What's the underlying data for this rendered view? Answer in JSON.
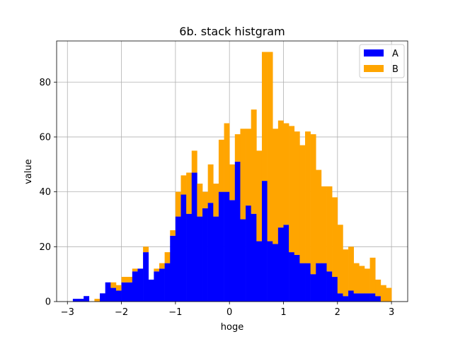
{
  "chart_data": {
    "type": "bar",
    "stacked": true,
    "title": "6b. stack histgram",
    "xlabel": "hoge",
    "ylabel": "value",
    "xlim": [
      -3.2,
      3.3
    ],
    "ylim": [
      0,
      95
    ],
    "xticks": [
      -3,
      -2,
      -1,
      0,
      1,
      2,
      3
    ],
    "xtick_labels": [
      "−3",
      "−2",
      "−1",
      "0",
      "1",
      "2",
      "3"
    ],
    "yticks": [
      0,
      20,
      40,
      60,
      80
    ],
    "ytick_labels": [
      "0",
      "20",
      "40",
      "60",
      "80"
    ],
    "grid": true,
    "legend_position": "top-right",
    "bin_start": -3.0,
    "bin_width": 0.1,
    "series": [
      {
        "name": "A",
        "color": "#0000ff",
        "values": [
          0,
          1,
          1,
          2,
          0,
          0,
          3,
          7,
          5,
          4,
          7,
          7,
          11,
          12,
          18,
          8,
          11,
          12,
          14,
          24,
          31,
          39,
          32,
          47,
          31,
          34,
          36,
          31,
          40,
          40,
          37,
          51,
          30,
          35,
          32,
          22,
          44,
          22,
          21,
          27,
          28,
          18,
          17,
          14,
          14,
          10,
          14,
          14,
          11,
          9,
          3,
          2,
          4,
          3,
          3,
          3,
          3,
          2,
          0,
          0
        ]
      },
      {
        "name": "B",
        "color": "#ffa500",
        "values": [
          0,
          0,
          0,
          0,
          0,
          1,
          0,
          0,
          2,
          2,
          2,
          2,
          1,
          0,
          2,
          0,
          1,
          2,
          4,
          2,
          9,
          7,
          15,
          8,
          12,
          6,
          14,
          12,
          19,
          25,
          13,
          10,
          33,
          28,
          38,
          33,
          47,
          69,
          42,
          39,
          37,
          46,
          45,
          43,
          48,
          51,
          34,
          28,
          31,
          29,
          25,
          17,
          16,
          11,
          10,
          9,
          13,
          6,
          6,
          5
        ]
      }
    ]
  }
}
